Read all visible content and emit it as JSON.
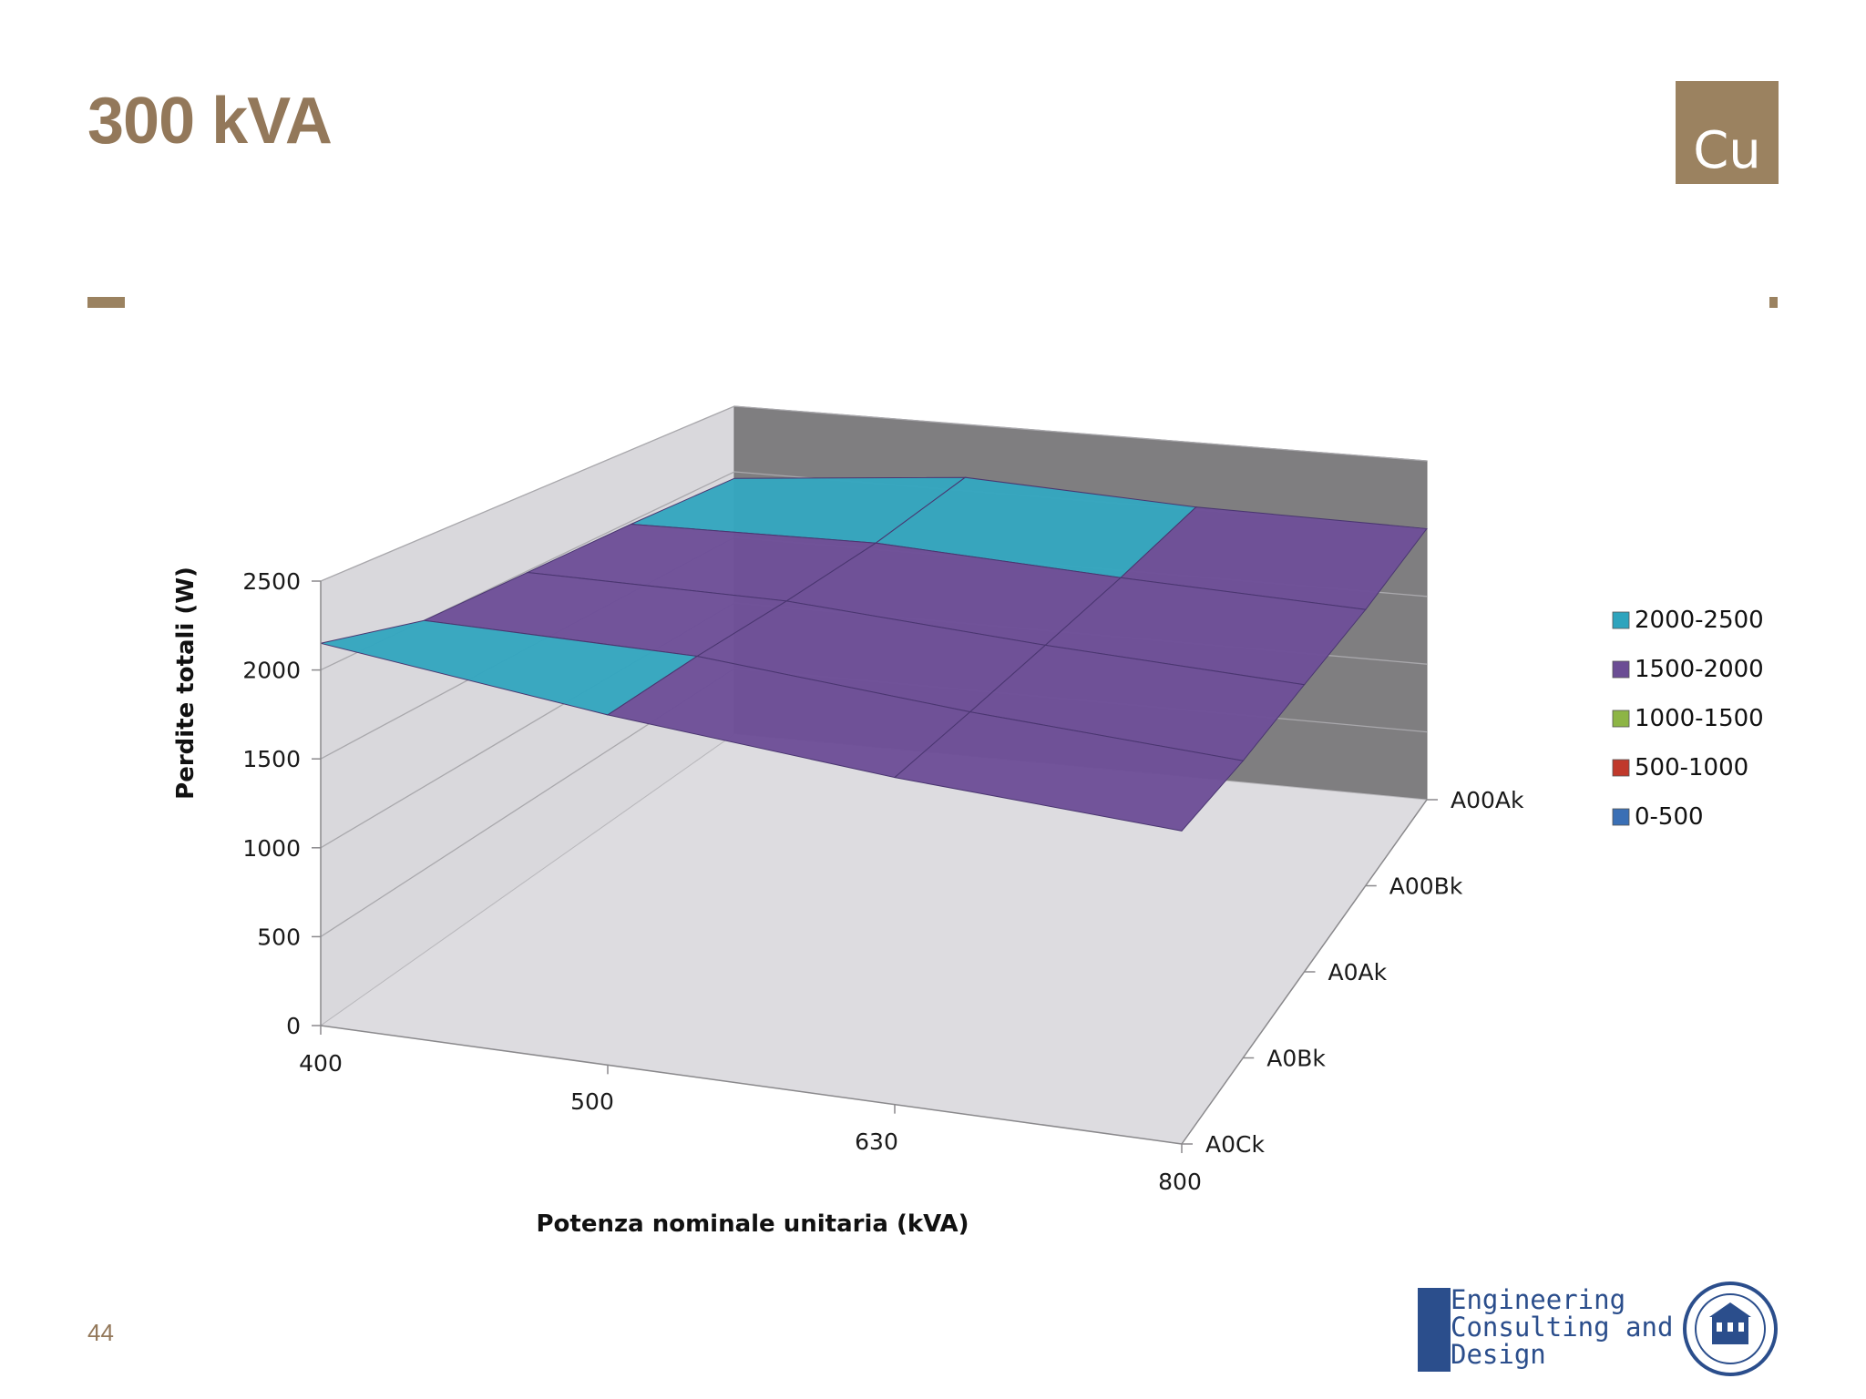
{
  "slide": {
    "title": "300 kVA",
    "material_badge": "Cu",
    "page_number": "44"
  },
  "colors": {
    "accent": "#9b8260",
    "title": "#93785a",
    "back_wall": "#7f7e80",
    "side_wall": "#d9d8dc",
    "floor": "#dddce0",
    "logo_blue": "#2b4e8c"
  },
  "logo": {
    "line1": "Engineering",
    "line2": "Consulting and",
    "line3": "Design"
  },
  "chart_data": {
    "type": "surface",
    "z_axis_label": "Perdite totali (W)",
    "x_axis_label": "Potenza nominale  unitaria (kVA)",
    "x_categories": [
      "400",
      "500",
      "630",
      "800"
    ],
    "depth_categories": [
      "A0Ck",
      "A0Bk",
      "A0Ak",
      "A00Bk",
      "A00Ak"
    ],
    "z_ticks": [
      "0",
      "500",
      "1000",
      "1500",
      "2000",
      "2500"
    ],
    "zlim": [
      0,
      2500
    ],
    "z_values": [
      [
        2150,
        2000,
        1990,
        1980,
        1950
      ],
      [
        1980,
        2000,
        2000,
        2020,
        2100
      ],
      [
        1860,
        1880,
        1910,
        1950,
        2020
      ],
      [
        1790,
        1800,
        1850,
        1900,
        2000
      ]
    ],
    "legend": [
      {
        "label": "2000-2500",
        "color": "#2ea4bd"
      },
      {
        "label": "1500-2000",
        "color": "#6b4d94"
      },
      {
        "label": "1000-1500",
        "color": "#8db545"
      },
      {
        "label": "500-1000",
        "color": "#c0392b"
      },
      {
        "label": "0-500",
        "color": "#3a6fb5"
      }
    ],
    "legend_position": "right"
  }
}
